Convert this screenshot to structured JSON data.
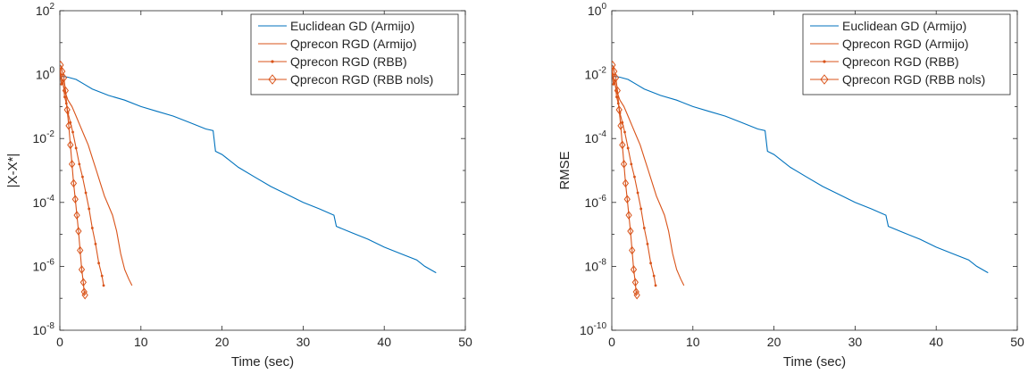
{
  "chart_data": [
    {
      "type": "line",
      "xlabel": "Time (sec)",
      "ylabel": "|X-X*|",
      "xlim": [
        0,
        50
      ],
      "ylim_exp": [
        -8,
        2
      ],
      "yscale": "log",
      "xticks": [
        "0",
        "10",
        "20",
        "30",
        "40",
        "50"
      ],
      "yticks": [
        {
          "base": "10",
          "exp": "-8"
        },
        {
          "base": "10",
          "exp": "-6"
        },
        {
          "base": "10",
          "exp": "-4"
        },
        {
          "base": "10",
          "exp": "-2"
        },
        {
          "base": "10",
          "exp": "0"
        },
        {
          "base": "10",
          "exp": "2"
        }
      ],
      "legend_position": "top-right",
      "series": [
        {
          "name": "Euclidean GD (Armijo)",
          "color": "#0072BD",
          "marker": "none",
          "x": [
            0,
            0.3,
            1,
            2,
            3,
            4,
            6,
            8,
            10,
            12,
            14,
            16,
            18,
            18.9,
            19.2,
            20,
            22,
            24,
            26,
            28,
            30,
            32,
            33.8,
            34.1,
            36,
            38,
            40,
            42,
            44,
            45,
            46.4
          ],
          "y_log10": [
            -0.1,
            -0.05,
            -0.08,
            -0.15,
            -0.3,
            -0.45,
            -0.65,
            -0.8,
            -1.0,
            -1.15,
            -1.3,
            -1.5,
            -1.7,
            -1.75,
            -2.4,
            -2.5,
            -2.9,
            -3.2,
            -3.5,
            -3.75,
            -4.0,
            -4.2,
            -4.4,
            -4.75,
            -4.95,
            -5.15,
            -5.4,
            -5.6,
            -5.8,
            -6.0,
            -6.2
          ]
        },
        {
          "name": "Qprecon RGD (Armijo)",
          "color": "#D95319",
          "marker": "none",
          "x": [
            0,
            0.3,
            0.6,
            1,
            1.5,
            2,
            2.5,
            3,
            3.5,
            4,
            4.5,
            5,
            5.5,
            6,
            6.5,
            7,
            7.5,
            8,
            8.5,
            8.9
          ],
          "y_log10": [
            0.2,
            -0.2,
            -0.5,
            -0.8,
            -1.0,
            -1.3,
            -1.6,
            -1.9,
            -2.2,
            -2.6,
            -3.0,
            -3.4,
            -3.8,
            -4.1,
            -4.4,
            -4.9,
            -5.6,
            -6.1,
            -6.4,
            -6.6
          ]
        },
        {
          "name": "Qprecon RGD (RBB)",
          "color": "#D95319",
          "marker": "dot",
          "x": [
            0,
            0.2,
            0.4,
            0.6,
            0.8,
            1.0,
            1.3,
            1.6,
            2.0,
            2.4,
            2.8,
            3.2,
            3.6,
            4.0,
            4.4,
            4.8,
            5.2,
            5.4
          ],
          "y_log10": [
            0.1,
            -0.3,
            -0.2,
            -0.7,
            -0.9,
            -1.2,
            -1.5,
            -1.8,
            -2.3,
            -2.8,
            -3.2,
            -3.7,
            -4.2,
            -4.8,
            -5.3,
            -5.9,
            -6.3,
            -6.6
          ]
        },
        {
          "name": "Qprecon RGD (RBB nols)",
          "color": "#D95319",
          "marker": "diamond",
          "x": [
            0.1,
            0.3,
            0.5,
            0.7,
            0.9,
            1.1,
            1.3,
            1.5,
            1.7,
            1.9,
            2.1,
            2.3,
            2.5,
            2.7,
            2.9,
            3.0,
            3.1
          ],
          "y_log10": [
            0.3,
            0.1,
            -0.1,
            -0.5,
            -1.1,
            -1.6,
            -2.2,
            -2.8,
            -3.4,
            -3.9,
            -4.4,
            -4.9,
            -5.5,
            -6.1,
            -6.5,
            -6.8,
            -6.9
          ]
        }
      ]
    },
    {
      "type": "line",
      "xlabel": "Time (sec)",
      "ylabel": "RMSE",
      "xlim": [
        0,
        50
      ],
      "ylim_exp": [
        -10,
        0
      ],
      "yscale": "log",
      "xticks": [
        "0",
        "10",
        "20",
        "30",
        "40",
        "50"
      ],
      "yticks": [
        {
          "base": "10",
          "exp": "-10"
        },
        {
          "base": "10",
          "exp": "-8"
        },
        {
          "base": "10",
          "exp": "-6"
        },
        {
          "base": "10",
          "exp": "-4"
        },
        {
          "base": "10",
          "exp": "-2"
        },
        {
          "base": "10",
          "exp": "0"
        }
      ],
      "legend_position": "top-right",
      "series": [
        {
          "name": "Euclidean GD (Armijo)",
          "color": "#0072BD",
          "marker": "none",
          "x": [
            0,
            0.3,
            1,
            2,
            3,
            4,
            6,
            8,
            10,
            12,
            14,
            16,
            18,
            18.9,
            19.2,
            20,
            22,
            24,
            26,
            28,
            30,
            32,
            33.8,
            34.1,
            36,
            38,
            40,
            42,
            44,
            45,
            46.4
          ],
          "y_log10": [
            -2.1,
            -2.05,
            -2.08,
            -2.15,
            -2.3,
            -2.45,
            -2.65,
            -2.8,
            -3.0,
            -3.15,
            -3.3,
            -3.5,
            -3.7,
            -3.75,
            -4.4,
            -4.5,
            -4.9,
            -5.2,
            -5.5,
            -5.75,
            -6.0,
            -6.2,
            -6.4,
            -6.75,
            -6.95,
            -7.15,
            -7.4,
            -7.6,
            -7.8,
            -8.0,
            -8.2
          ]
        },
        {
          "name": "Qprecon RGD (Armijo)",
          "color": "#D95319",
          "marker": "none",
          "x": [
            0,
            0.3,
            0.6,
            1,
            1.5,
            2,
            2.5,
            3,
            3.5,
            4,
            4.5,
            5,
            5.5,
            6,
            6.5,
            7,
            7.5,
            8,
            8.5,
            8.9
          ],
          "y_log10": [
            -1.8,
            -2.2,
            -2.5,
            -2.8,
            -3.0,
            -3.3,
            -3.6,
            -3.9,
            -4.2,
            -4.6,
            -5.0,
            -5.4,
            -5.8,
            -6.1,
            -6.4,
            -6.9,
            -7.6,
            -8.1,
            -8.4,
            -8.6
          ]
        },
        {
          "name": "Qprecon RGD (RBB)",
          "color": "#D95319",
          "marker": "dot",
          "x": [
            0,
            0.2,
            0.4,
            0.6,
            0.8,
            1.0,
            1.3,
            1.6,
            2.0,
            2.4,
            2.8,
            3.2,
            3.6,
            4.0,
            4.4,
            4.8,
            5.2,
            5.4
          ],
          "y_log10": [
            -1.9,
            -2.3,
            -2.2,
            -2.7,
            -2.9,
            -3.2,
            -3.5,
            -3.8,
            -4.3,
            -4.8,
            -5.2,
            -5.7,
            -6.2,
            -6.8,
            -7.3,
            -7.9,
            -8.3,
            -8.6
          ]
        },
        {
          "name": "Qprecon RGD (RBB nols)",
          "color": "#D95319",
          "marker": "diamond",
          "x": [
            0.1,
            0.3,
            0.5,
            0.7,
            0.9,
            1.1,
            1.3,
            1.5,
            1.7,
            1.9,
            2.1,
            2.3,
            2.5,
            2.7,
            2.9,
            3.0,
            3.1
          ],
          "y_log10": [
            -1.7,
            -1.9,
            -2.1,
            -2.5,
            -3.1,
            -3.6,
            -4.2,
            -4.8,
            -5.4,
            -5.9,
            -6.4,
            -6.9,
            -7.5,
            -8.1,
            -8.5,
            -8.8,
            -8.9
          ]
        }
      ]
    }
  ]
}
